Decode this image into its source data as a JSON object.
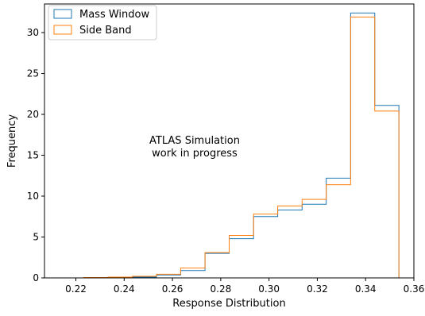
{
  "chart_data": {
    "type": "histogram",
    "xlabel": "Response Distribution",
    "ylabel": "Frequency",
    "xlim": [
      0.207,
      0.36
    ],
    "ylim": [
      0,
      33.5
    ],
    "x_ticks": [
      0.22,
      0.24,
      0.26,
      0.28,
      0.3,
      0.32,
      0.34,
      0.36
    ],
    "x_tick_labels": [
      "0.22",
      "0.24",
      "0.26",
      "0.28",
      "0.30",
      "0.32",
      "0.34",
      "0.36"
    ],
    "y_ticks": [
      0,
      5,
      10,
      15,
      20,
      25,
      30
    ],
    "y_tick_labels": [
      "0",
      "5",
      "10",
      "15",
      "20",
      "25",
      "30"
    ],
    "bin_edges": [
      0.2132,
      0.2233,
      0.2333,
      0.2434,
      0.2534,
      0.2634,
      0.2735,
      0.2835,
      0.2936,
      0.3036,
      0.3137,
      0.3237,
      0.3338,
      0.3438,
      0.3538
    ],
    "series": [
      {
        "name": "Mass Window",
        "color": "#1f77b4",
        "values": [
          0.0,
          0.0,
          0.05,
          0.1,
          0.35,
          0.9,
          3.0,
          4.8,
          7.5,
          8.3,
          9.0,
          12.2,
          32.4,
          21.1
        ]
      },
      {
        "name": "Side Band",
        "color": "#ff7f0e",
        "values": [
          0.0,
          0.05,
          0.1,
          0.2,
          0.45,
          1.2,
          3.1,
          5.2,
          7.8,
          8.8,
          9.6,
          11.4,
          31.9,
          20.4
        ]
      }
    ],
    "annotation": [
      "ATLAS Simulation",
      "work in progress"
    ],
    "legend_position": "upper-left",
    "grid": false
  }
}
